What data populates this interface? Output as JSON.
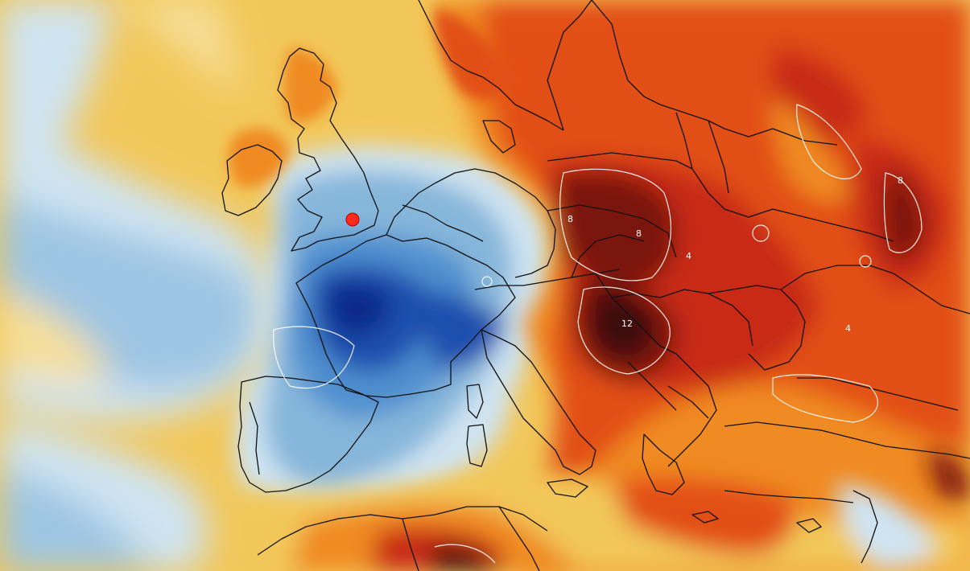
{
  "map": {
    "colors": {
      "ocean_yellow": "#f2c75a",
      "pale_yellow": "#f6df9a",
      "light_blue": "#cfe4f2",
      "mid_blue": "#86b6da",
      "blue": "#4f8fcf",
      "deep_blue": "#1f4fae",
      "navy": "#0b2a8a",
      "orange": "#f08a22",
      "red_orange": "#e24f16",
      "red": "#c82c12",
      "dark_red": "#7a1210",
      "maroon": "#3a0d0d",
      "border": "#111111",
      "contour": "#ffffff",
      "marker": "#ff2a1a"
    },
    "contour_labels": [
      {
        "id": "contour-label-12",
        "text": "12"
      },
      {
        "id": "contour-label-8-a",
        "text": "8"
      },
      {
        "id": "contour-label-8-b",
        "text": "8"
      },
      {
        "id": "contour-label-8-c",
        "text": "8"
      },
      {
        "id": "contour-label-4-a",
        "text": "4"
      },
      {
        "id": "contour-label-4-b",
        "text": "4"
      }
    ],
    "marker_icon": "location-dot-icon"
  }
}
